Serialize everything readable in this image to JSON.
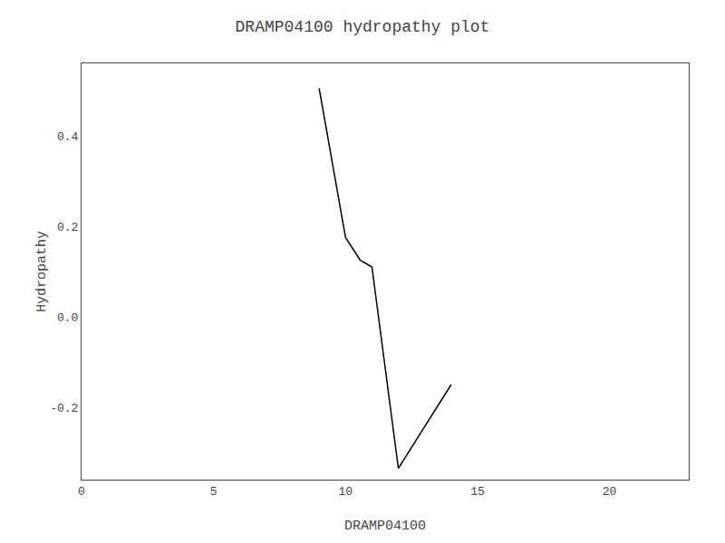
{
  "chart_data": {
    "type": "line",
    "title": "DRAMP04100 hydropathy plot",
    "xlabel": "DRAMP04100",
    "ylabel": "Hydropathy",
    "series": [
      {
        "x": [
          9.0,
          10.0,
          10.5,
          10.55,
          11.0,
          12.0
        ],
        "values": [
          0.505,
          0.175,
          0.13,
          0.125,
          0.11,
          -0.335
        ],
        "color": "#000000"
      },
      {
        "x": [
          12.0,
          14.0
        ],
        "values": [
          -0.335,
          -0.15
        ],
        "color": "#000000"
      }
    ],
    "xlim": [
      0,
      23
    ],
    "ylim": [
      -0.36,
      0.56
    ],
    "xticks": [
      0,
      5,
      10,
      15,
      20
    ],
    "yticks": [
      -0.2,
      {
        "value": 0,
        "label": "0.0"
      },
      0.2,
      0.4
    ],
    "grid": false
  }
}
